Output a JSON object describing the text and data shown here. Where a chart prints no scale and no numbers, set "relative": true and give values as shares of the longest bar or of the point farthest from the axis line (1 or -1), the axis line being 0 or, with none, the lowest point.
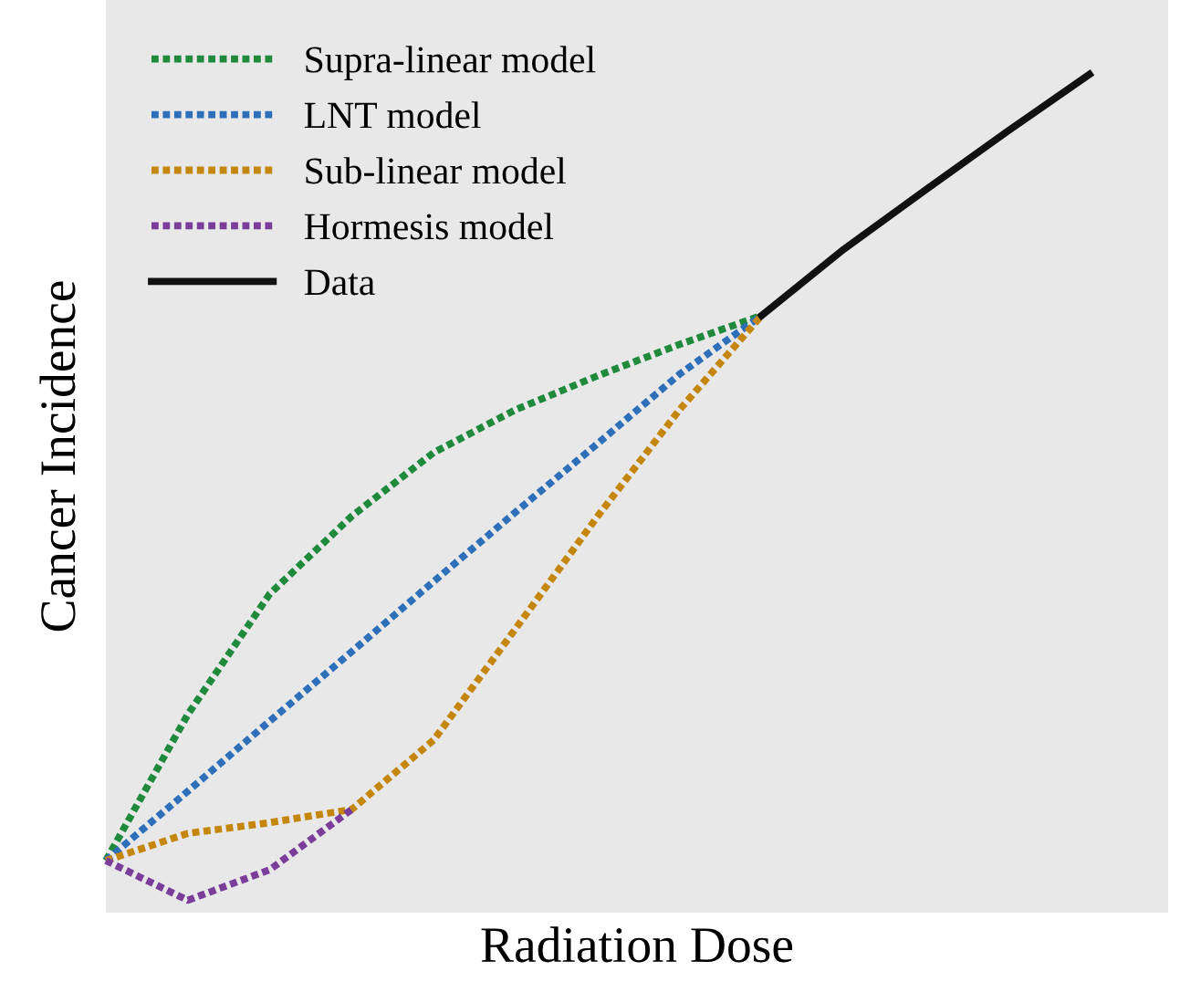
{
  "chart_data": {
    "type": "line",
    "relative": true,
    "xlabel": "Radiation Dose",
    "ylabel": "Cancer Incidence",
    "legend": "top left",
    "categories": [
      null,
      null,
      null,
      null,
      null,
      null,
      null,
      null,
      null,
      null,
      null,
      null,
      null
    ],
    "series": [
      {
        "name": "Supra-linear model",
        "color": "#1f8a3c",
        "line_style": "dotted",
        "values": [
          0.048,
          0.225,
          0.371,
          0.465,
          0.542,
          0.594,
          0.635,
          0.673,
          0.708,
          null,
          null,
          null,
          null
        ]
      },
      {
        "name": "LNT model",
        "color": "#2e6fba",
        "line_style": "dotted",
        "values": [
          0.048,
          0.132,
          0.217,
          0.301,
          0.386,
          0.47,
          0.553,
          0.637,
          0.708,
          null,
          null,
          null,
          null
        ]
      },
      {
        "name": "Sub-linear model",
        "color": "#c4860c",
        "line_style": "dotted",
        "values": [
          0.048,
          0.081,
          0.094,
          0.11,
          0.194,
          0.329,
          0.465,
          0.594,
          0.708,
          null,
          null,
          null,
          null
        ]
      },
      {
        "name": "Hormesis model",
        "color": "#7a3d9a",
        "line_style": "dotted",
        "values": [
          0.048,
          0,
          0.037,
          0.11,
          null,
          null,
          null,
          null,
          null,
          null,
          null,
          null,
          null
        ]
      },
      {
        "name": "Data",
        "color": "#111111",
        "line_style": "solid",
        "values": [
          null,
          null,
          null,
          null,
          null,
          null,
          null,
          null,
          0.708,
          0.788,
          0.86,
          0.931,
          1
        ]
      }
    ]
  }
}
